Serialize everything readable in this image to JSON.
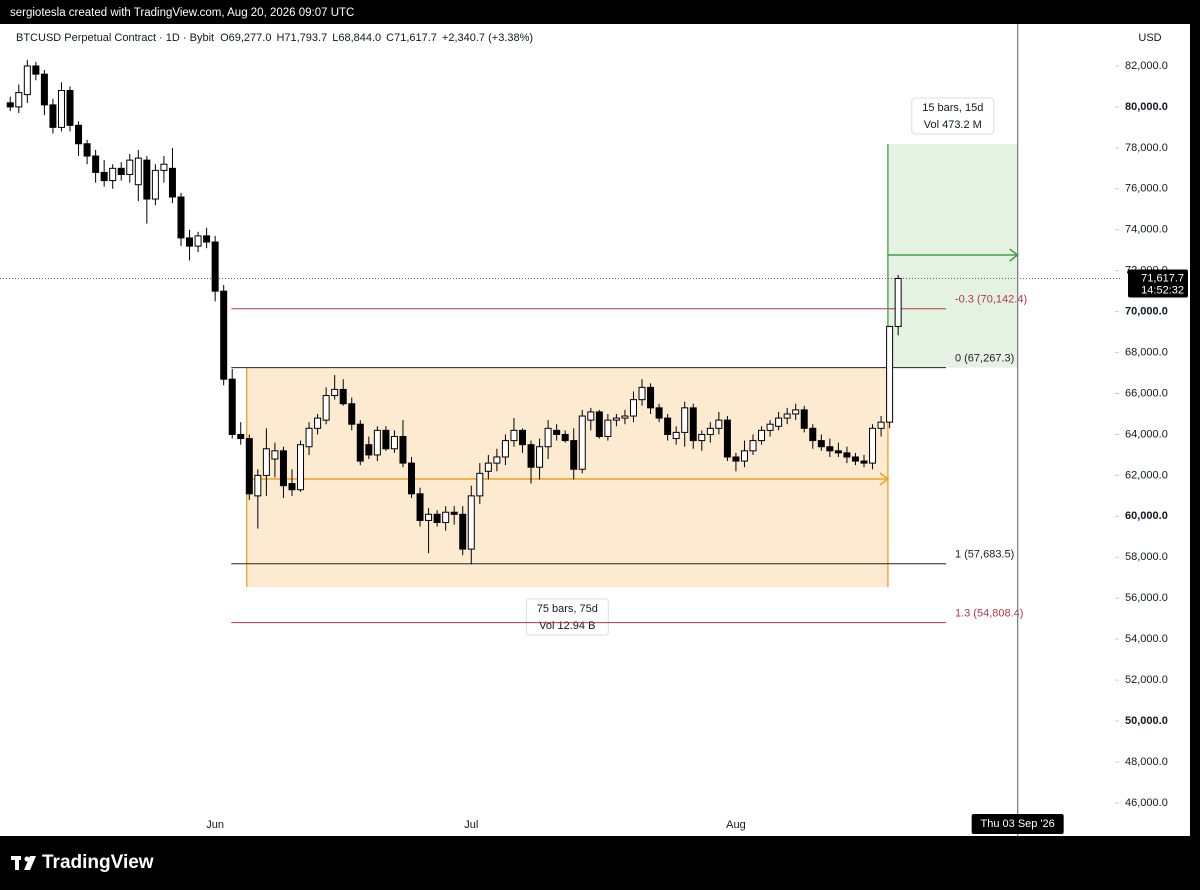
{
  "chart_data": {
    "type": "candlestick",
    "credit": "sergiotesla created with TradingView.com, Aug 20, 2026 09:07 UTC",
    "symbol": "BTCUSD Perpetual Contract · 1D · Bybit",
    "ohlc_text": [
      "O69,277.0",
      "H71,793.7",
      "L68,844.0",
      "C71,617.7",
      "+2,340.7 (+3.38%)"
    ],
    "axis_label": "USD",
    "brand": "TradingView",
    "up_color": "#ffffff",
    "down_color": "#000000",
    "categories": [
      null,
      null,
      null,
      null,
      null,
      null,
      null,
      null,
      null,
      null,
      null,
      null,
      null,
      null,
      null,
      null,
      null,
      null,
      null,
      null,
      null,
      null,
      null,
      null,
      "Jun",
      null,
      null,
      null,
      null,
      null,
      null,
      null,
      null,
      null,
      null,
      null,
      null,
      null,
      null,
      null,
      null,
      null,
      null,
      null,
      null,
      null,
      null,
      null,
      null,
      null,
      null,
      null,
      null,
      null,
      "Jul",
      null,
      null,
      null,
      null,
      null,
      null,
      null,
      null,
      null,
      null,
      null,
      null,
      null,
      null,
      null,
      null,
      null,
      null,
      null,
      null,
      null,
      null,
      null,
      null,
      null,
      null,
      null,
      null,
      null,
      null,
      "Aug",
      null,
      null,
      null,
      null,
      null,
      null,
      null,
      null,
      null,
      null,
      null,
      null,
      null,
      null,
      null,
      null,
      null,
      null,
      null
    ],
    "values": [
      [
        80200,
        80500,
        79800,
        80000
      ],
      [
        80000,
        81100,
        79700,
        80700
      ],
      [
        80600,
        82300,
        80200,
        82000
      ],
      [
        82000,
        82200,
        81300,
        81600
      ],
      [
        81600,
        81800,
        79600,
        80100
      ],
      [
        80100,
        80400,
        78700,
        79000
      ],
      [
        79000,
        81200,
        78800,
        80800
      ],
      [
        80800,
        81000,
        78800,
        79100
      ],
      [
        79100,
        79300,
        77600,
        78200
      ],
      [
        78200,
        78400,
        77200,
        77600
      ],
      [
        77600,
        77900,
        76300,
        76800
      ],
      [
        76800,
        77400,
        76100,
        76400
      ],
      [
        76400,
        77200,
        76000,
        77000
      ],
      [
        77000,
        77300,
        76400,
        76700
      ],
      [
        76700,
        77700,
        76300,
        77400
      ],
      [
        76200,
        77900,
        75400,
        77500
      ],
      [
        77400,
        77600,
        74300,
        75500
      ],
      [
        75500,
        77200,
        75200,
        76900
      ],
      [
        76900,
        77600,
        76300,
        77200
      ],
      [
        77000,
        78000,
        75300,
        75600
      ],
      [
        75600,
        75800,
        73200,
        73600
      ],
      [
        73600,
        74000,
        72500,
        73200
      ],
      [
        73200,
        73900,
        72900,
        73700
      ],
      [
        73700,
        74100,
        73100,
        73400
      ],
      [
        73400,
        73700,
        70500,
        71000
      ],
      [
        71000,
        71300,
        66400,
        66700
      ],
      [
        66700,
        67200,
        63800,
        64000
      ],
      [
        64000,
        64600,
        63500,
        63800
      ],
      [
        63800,
        64000,
        60800,
        61100
      ],
      [
        61000,
        62300,
        59400,
        62000
      ],
      [
        62000,
        64300,
        61000,
        63300
      ],
      [
        62800,
        63600,
        61900,
        63200
      ],
      [
        63200,
        63400,
        60900,
        61500
      ],
      [
        61600,
        62300,
        61000,
        61300
      ],
      [
        61300,
        63700,
        61200,
        63500
      ],
      [
        63400,
        64600,
        63000,
        64300
      ],
      [
        64300,
        65000,
        64000,
        64800
      ],
      [
        64700,
        66300,
        64500,
        65900
      ],
      [
        65900,
        66900,
        65700,
        66200
      ],
      [
        66200,
        66700,
        65400,
        65500
      ],
      [
        65500,
        65800,
        64200,
        64500
      ],
      [
        64500,
        64700,
        62500,
        62700
      ],
      [
        63500,
        63900,
        62800,
        63000
      ],
      [
        63000,
        64400,
        62700,
        64200
      ],
      [
        64200,
        64400,
        63200,
        63300
      ],
      [
        63300,
        64200,
        63100,
        63900
      ],
      [
        63900,
        64700,
        62400,
        62600
      ],
      [
        62600,
        62900,
        60900,
        61100
      ],
      [
        61100,
        61400,
        59500,
        59800
      ],
      [
        59800,
        60400,
        58200,
        60100
      ],
      [
        60100,
        60300,
        59500,
        59700
      ],
      [
        59700,
        60500,
        59300,
        60200
      ],
      [
        60200,
        60500,
        59600,
        60100
      ],
      [
        60100,
        60500,
        58100,
        58400
      ],
      [
        58400,
        61500,
        57650,
        61000
      ],
      [
        61000,
        62600,
        60600,
        62100
      ],
      [
        62200,
        63000,
        61800,
        62600
      ],
      [
        62600,
        63300,
        62200,
        62900
      ],
      [
        62900,
        64000,
        62500,
        63700
      ],
      [
        63700,
        64800,
        63400,
        64200
      ],
      [
        64200,
        64300,
        63100,
        63500
      ],
      [
        63500,
        63700,
        61600,
        62400
      ],
      [
        62400,
        63800,
        61800,
        63400
      ],
      [
        63400,
        64700,
        62800,
        64300
      ],
      [
        64200,
        64500,
        63700,
        64000
      ],
      [
        64000,
        64200,
        63600,
        63700
      ],
      [
        63700,
        64300,
        61800,
        62300
      ],
      [
        62300,
        65200,
        62100,
        64900
      ],
      [
        64700,
        65300,
        64200,
        65100
      ],
      [
        65100,
        65200,
        63800,
        63900
      ],
      [
        63900,
        65000,
        63700,
        64700
      ],
      [
        64700,
        65000,
        64400,
        64800
      ],
      [
        64800,
        65200,
        64500,
        64900
      ],
      [
        64900,
        66100,
        64600,
        65700
      ],
      [
        65700,
        66700,
        65400,
        66300
      ],
      [
        66300,
        66500,
        65000,
        65300
      ],
      [
        65300,
        65500,
        64600,
        64800
      ],
      [
        64800,
        65000,
        63700,
        64000
      ],
      [
        63800,
        64400,
        63500,
        64100
      ],
      [
        64100,
        65600,
        63400,
        65300
      ],
      [
        65300,
        65500,
        63300,
        63700
      ],
      [
        63700,
        64200,
        63200,
        64000
      ],
      [
        64000,
        64600,
        63600,
        64300
      ],
      [
        64300,
        65100,
        64000,
        64700
      ],
      [
        64700,
        64900,
        62700,
        62900
      ],
      [
        62900,
        63100,
        62200,
        62700
      ],
      [
        62700,
        63700,
        62400,
        63200
      ],
      [
        63200,
        64000,
        63000,
        63700
      ],
      [
        63700,
        64400,
        63500,
        64200
      ],
      [
        64200,
        64700,
        63900,
        64500
      ],
      [
        64400,
        65100,
        64200,
        64800
      ],
      [
        64800,
        65300,
        64500,
        65000
      ],
      [
        65000,
        65500,
        64700,
        65200
      ],
      [
        65200,
        65400,
        64100,
        64300
      ],
      [
        64300,
        64500,
        63300,
        63700
      ],
      [
        63700,
        64000,
        63200,
        63400
      ],
      [
        63400,
        63800,
        62900,
        63200
      ],
      [
        63200,
        63600,
        62900,
        63100
      ],
      [
        63100,
        63400,
        62600,
        62900
      ],
      [
        62900,
        63100,
        62500,
        62700
      ],
      [
        62700,
        63000,
        62400,
        62600
      ],
      [
        62600,
        64500,
        62300,
        64300
      ],
      [
        64300,
        64900,
        63900,
        64600
      ],
      [
        64600,
        69300,
        64300,
        69277
      ],
      [
        69277,
        71793.7,
        68844,
        71617.7
      ]
    ],
    "xlim": [
      -1.2,
      129.4
    ],
    "ylim": [
      44385,
      84050
    ],
    "yticks": [
      {
        "value": 46000,
        "label": "46,000.0"
      },
      {
        "value": 48000,
        "label": "48,000.0"
      },
      {
        "value": 50000,
        "label": "50,000.0"
      },
      {
        "value": 52000,
        "label": "52,000.0"
      },
      {
        "value": 54000,
        "label": "54,000.0"
      },
      {
        "value": 56000,
        "label": "56,000.0"
      },
      {
        "value": 58000,
        "label": "58,000.0"
      },
      {
        "value": 60000,
        "label": "60,000.0"
      },
      {
        "value": 62000,
        "label": "62,000.0"
      },
      {
        "value": 64000,
        "label": "64,000.0"
      },
      {
        "value": 66000,
        "label": "66,000.0"
      },
      {
        "value": 68000,
        "label": "68,000.0"
      },
      {
        "value": 70000,
        "label": "70,000.0"
      },
      {
        "value": 72000,
        "label": "72,000.0"
      },
      {
        "value": 74000,
        "label": "74,000.0"
      },
      {
        "value": 76000,
        "label": "76,000.0"
      },
      {
        "value": 78000,
        "label": "78,000.0"
      },
      {
        "value": 80000,
        "label": "80,000.0"
      },
      {
        "value": 82000,
        "label": "82,000.0"
      }
    ],
    "level_range": [
      25.9,
      109.6
    ],
    "levels": [
      {
        "value": 70142.4,
        "label": "-0.3 (70,142.4)",
        "color": "#b2384a"
      },
      {
        "value": 67267.3,
        "label": "0 (67,267.3)",
        "color": "#222222"
      },
      {
        "value": 57683.5,
        "label": "1 (57,683.5)",
        "color": "#222222"
      },
      {
        "value": 54808.4,
        "label": "1.3 (54,808.4)",
        "color": "#b2384a"
      }
    ],
    "measures": [
      {
        "start": 27.7,
        "end": 102.8,
        "ylim": [
          56548,
          67267.3
        ],
        "arrow": 61824,
        "color": "#f0a020",
        "fill": "#fdebd1",
        "labels": [
          "75 bars, 75d",
          "Vol 12.94 B"
        ]
      },
      {
        "start": 102.8,
        "end": 118,
        "ylim": [
          67267.3,
          78190
        ],
        "arrow": 72767,
        "color": "#43a047",
        "fill": "#e4f3e1",
        "labels": [
          "15 bars, 15d",
          "Vol 473.2 M"
        ]
      }
    ],
    "last_price": {
      "value": 71617.7,
      "label": "71,617.7",
      "countdown": "14:52:32"
    },
    "cursor": {
      "x": 118,
      "label": "Thu 03 Sep '26"
    }
  }
}
